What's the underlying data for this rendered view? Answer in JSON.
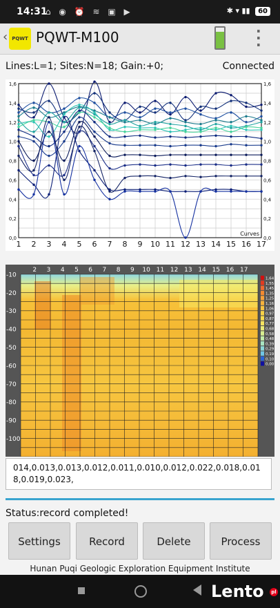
{
  "statusbar": {
    "time": "14:31",
    "icons": "⌂ ◉ ⏰ ≋ ▣ ▶",
    "right": "✱ ▾ ▮▮",
    "battery": "60"
  },
  "app": {
    "logo_text": "PQWT",
    "title": "PQWT-M100"
  },
  "info": {
    "params": "Lines:L=1;  Sites:N=18;  Gain:+0;",
    "connection": "Connected"
  },
  "chart_data": [
    {
      "type": "line",
      "legend_label": "Curves",
      "x": [
        1,
        2,
        3,
        4,
        5,
        6,
        7,
        8,
        9,
        10,
        11,
        12,
        13,
        14,
        15,
        16,
        17
      ],
      "ylim": [
        0,
        1.6
      ],
      "y_ticks": [
        "0,0",
        "0,2",
        "0,4",
        "0,6",
        "0,8",
        "1,0",
        "1,2",
        "1,4",
        "1,6"
      ],
      "grid": true,
      "series": [
        {
          "values": [
            1.38,
            1.25,
            1.6,
            1.25,
            1.1,
            1.62,
            1.2,
            1.4,
            1.3,
            1.42,
            1.28,
            1.46,
            1.32,
            1.5,
            1.48,
            1.36,
            1.38
          ]
        },
        {
          "values": [
            1.34,
            1.3,
            1.42,
            1.2,
            1.3,
            1.5,
            1.3,
            1.22,
            1.36,
            1.3,
            1.4,
            1.22,
            1.36,
            1.34,
            1.42,
            1.4,
            1.32
          ]
        },
        {
          "values": [
            1.3,
            1.4,
            1.3,
            1.34,
            1.45,
            1.4,
            1.25,
            1.3,
            1.25,
            1.34,
            1.3,
            1.34,
            1.28,
            1.24,
            1.3,
            1.2,
            1.26
          ]
        },
        {
          "values": [
            1.26,
            1.35,
            1.25,
            1.3,
            1.36,
            1.32,
            1.25,
            1.2,
            1.22,
            1.18,
            1.24,
            1.2,
            1.18,
            1.22,
            1.2,
            1.26,
            1.22
          ]
        },
        {
          "values": [
            1.22,
            1.1,
            1.3,
            1.2,
            1.35,
            1.28,
            1.18,
            1.22,
            1.16,
            1.2,
            1.18,
            1.16,
            1.12,
            1.18,
            1.14,
            1.16,
            1.2
          ]
        },
        {
          "values": [
            1.18,
            1.2,
            1.05,
            1.28,
            1.38,
            1.3,
            1.12,
            1.15,
            1.14,
            1.14,
            1.1,
            1.12,
            1.14,
            1.12,
            1.16,
            1.12,
            1.12
          ]
        },
        {
          "values": [
            1.15,
            1.22,
            1.2,
            1.15,
            1.3,
            1.25,
            1.14,
            1.1,
            1.12,
            1.12,
            1.14,
            1.1,
            1.1,
            1.14,
            1.1,
            1.15,
            1.14
          ]
        },
        {
          "values": [
            1.12,
            1.05,
            0.95,
            1.1,
            1.32,
            1.2,
            1.05,
            1.05,
            1.06,
            1.04,
            1.05,
            1.04,
            1.05,
            1.06,
            1.05,
            1.05,
            1.03
          ]
        },
        {
          "values": [
            1.05,
            1.0,
            0.85,
            1.0,
            1.25,
            1.1,
            0.98,
            0.96,
            0.96,
            0.96,
            0.95,
            0.96,
            0.96,
            0.95,
            0.97,
            0.96,
            0.96
          ]
        },
        {
          "values": [
            1.0,
            0.8,
            1.1,
            0.8,
            1.2,
            1.05,
            0.85,
            0.86,
            0.86,
            0.85,
            0.86,
            0.86,
            0.86,
            0.86,
            0.86,
            0.86,
            0.86
          ]
        },
        {
          "values": [
            0.95,
            0.65,
            0.75,
            0.65,
            1.1,
            0.95,
            0.72,
            0.75,
            0.76,
            0.75,
            0.76,
            0.75,
            0.76,
            0.76,
            0.75,
            0.76,
            0.76
          ]
        },
        {
          "values": [
            0.85,
            0.7,
            1.25,
            0.6,
            1.15,
            0.9,
            0.48,
            0.62,
            0.64,
            0.64,
            0.62,
            0.64,
            0.63,
            0.64,
            0.64,
            0.64,
            0.64
          ]
        },
        {
          "values": [
            0.7,
            0.55,
            0.45,
            1.25,
            0.9,
            0.7,
            0.5,
            0.5,
            0.5,
            0.5,
            0.48,
            0.48,
            0.48,
            0.5,
            0.5,
            0.48,
            0.48
          ]
        },
        {
          "values": [
            0.5,
            0.45,
            1.2,
            0.45,
            0.95,
            0.6,
            0.4,
            0.48,
            0.48,
            0.48,
            0.48,
            0.0,
            0.48,
            0.48,
            0.48,
            0.48,
            0.48
          ]
        }
      ]
    },
    {
      "type": "heatmap",
      "x_ticks": [
        "2",
        "3",
        "4",
        "5",
        "6",
        "7",
        "8",
        "9",
        "10",
        "11",
        "12",
        "13",
        "14",
        "15",
        "16",
        "17"
      ],
      "y_ticks": [
        "-10",
        "-20",
        "-30",
        "-40",
        "-50",
        "-60",
        "-70",
        "-80",
        "-90",
        "-100"
      ],
      "legend": [
        "1,64",
        "1,55",
        "1,45",
        "1,35",
        "1,25",
        "1,16",
        "1,06",
        "0,97",
        "0,87",
        "0,77",
        "0,68",
        "0,58",
        "0,48",
        "0,39",
        "0,29",
        "0,19",
        "0,10",
        "0,00"
      ]
    }
  ],
  "data_text": "014,0.013,0.013,0.012,0.011,0.010,0.012,0.022,0.018,0.018,0.019,0.023,",
  "status": "Status:record completed!",
  "buttons": {
    "settings": "Settings",
    "record": "Record",
    "delete": "Delete",
    "process": "Process"
  },
  "footer": "Hunan Puqi Geologic Exploration Equipment Institute",
  "watermark": {
    "brand": "Lento",
    "suffix": "pl"
  }
}
